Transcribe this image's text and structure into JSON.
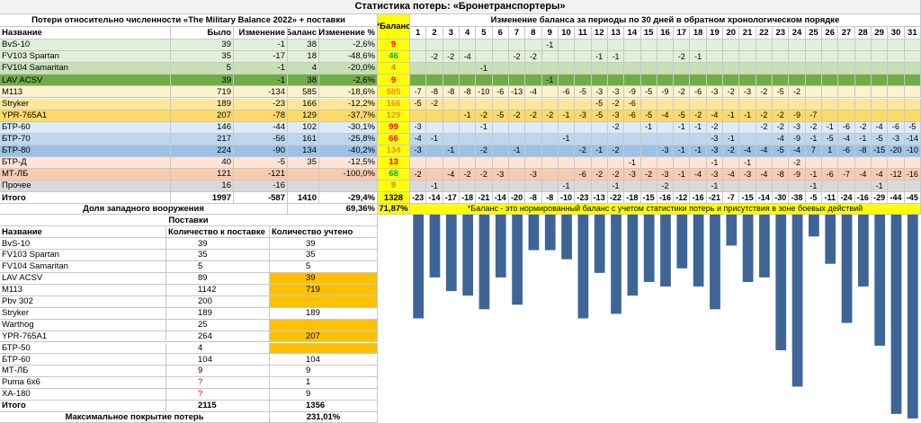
{
  "title": "Статистика потерь: «Бронетранспортеры»",
  "table": {
    "header_left": "Потери относительно численности «The Military Balance 2022» + поставки",
    "header_balance": "*Баланс",
    "header_periods": "Изменение баланса за периоды по 30 дней в обратном хронологическом порядке",
    "columns": [
      "Название",
      "Было",
      "Изменение",
      "Баланс",
      "Изменение %"
    ],
    "period_headers": [
      1,
      2,
      3,
      4,
      5,
      6,
      7,
      8,
      9,
      10,
      11,
      12,
      13,
      14,
      15,
      16,
      17,
      18,
      19,
      20,
      21,
      22,
      23,
      24,
      25,
      26,
      27,
      28,
      29,
      30,
      31
    ],
    "rows": [
      {
        "name": "BvS-10",
        "was": 39,
        "change": -1,
        "balance": 38,
        "change_pct": "-2,6%",
        "norm_balance": 9,
        "color": "#e2efda",
        "balance_color": "#ff0000",
        "periods": [
          null,
          null,
          null,
          null,
          null,
          null,
          null,
          null,
          -1,
          null,
          null,
          null,
          null,
          null,
          null,
          null,
          null,
          null,
          null,
          null,
          null,
          null,
          null,
          null,
          null,
          null,
          null,
          null,
          null,
          null,
          null
        ]
      },
      {
        "name": "FV103 Spartan",
        "was": 35,
        "change": -17,
        "balance": 18,
        "change_pct": "-48,6%",
        "norm_balance": 46,
        "color": "#e2efda",
        "balance_color": "#00b050",
        "periods": [
          null,
          -2,
          -2,
          -4,
          null,
          null,
          -2,
          -2,
          null,
          null,
          null,
          -1,
          -1,
          null,
          null,
          null,
          -2,
          -1,
          null,
          null,
          null,
          null,
          null,
          null,
          null,
          null,
          null,
          null,
          null,
          null,
          null
        ]
      },
      {
        "name": "FV104 Samaritan",
        "was": 5,
        "change": -1,
        "balance": 4,
        "change_pct": "-20,0%",
        "norm_balance": 4,
        "color": "#c6e0b4",
        "balance_color": "#bf9000",
        "periods": [
          null,
          null,
          null,
          null,
          -1,
          null,
          null,
          null,
          null,
          null,
          null,
          null,
          null,
          null,
          null,
          null,
          null,
          null,
          null,
          null,
          null,
          null,
          null,
          null,
          null,
          null,
          null,
          null,
          null,
          null,
          null
        ]
      },
      {
        "name": "LAV ACSV",
        "was": 39,
        "change": -1,
        "balance": 38,
        "change_pct": "-2,6%",
        "norm_balance": 9,
        "color": "#70ad47",
        "balance_color": "#ff0000",
        "periods": [
          null,
          null,
          null,
          null,
          null,
          null,
          null,
          null,
          -1,
          null,
          null,
          null,
          null,
          null,
          null,
          null,
          null,
          null,
          null,
          null,
          null,
          null,
          null,
          null,
          null,
          null,
          null,
          null,
          null,
          null,
          null
        ]
      },
      {
        "name": "M113",
        "was": 719,
        "change": -134,
        "balance": 585,
        "change_pct": "-18,6%",
        "norm_balance": 585,
        "color": "#fff2cc",
        "balance_color": "#e69138",
        "periods": [
          -7,
          -8,
          -8,
          -8,
          -10,
          -6,
          -13,
          -4,
          null,
          -6,
          -5,
          -3,
          -3,
          -9,
          -5,
          -9,
          -2,
          -6,
          -3,
          -2,
          -3,
          -2,
          -5,
          -2,
          null,
          null,
          null,
          null,
          null,
          null,
          null
        ]
      },
      {
        "name": "Stryker",
        "was": 189,
        "change": -23,
        "balance": 166,
        "change_pct": "-12,2%",
        "norm_balance": 166,
        "color": "#ffe699",
        "balance_color": "#e69138",
        "periods": [
          -5,
          -2,
          null,
          null,
          null,
          null,
          null,
          null,
          null,
          null,
          null,
          -5,
          -2,
          -6,
          null,
          null,
          null,
          null,
          null,
          null,
          null,
          null,
          null,
          null,
          null,
          null,
          null,
          null,
          null,
          null,
          null
        ]
      },
      {
        "name": "YPR-765A1",
        "was": 207,
        "change": -78,
        "balance": 129,
        "change_pct": "-37,7%",
        "norm_balance": 129,
        "color": "#ffd966",
        "balance_color": "#e69138",
        "periods": [
          null,
          null,
          null,
          -1,
          -2,
          -5,
          -2,
          -2,
          -2,
          -1,
          -3,
          -5,
          -3,
          -6,
          -5,
          -4,
          -5,
          -2,
          -4,
          -1,
          -1,
          -2,
          -2,
          -9,
          -7,
          null,
          null,
          null,
          null,
          null,
          null
        ]
      },
      {
        "name": "БТР-60",
        "was": 146,
        "change": -44,
        "balance": 102,
        "change_pct": "-30,1%",
        "norm_balance": 99,
        "color": "#ddebf7",
        "balance_color": "#ff0000",
        "periods": [
          -3,
          null,
          null,
          null,
          -1,
          null,
          null,
          null,
          null,
          null,
          null,
          null,
          -2,
          null,
          -1,
          null,
          -1,
          -1,
          -2,
          null,
          null,
          -2,
          -2,
          -3,
          -2,
          -1,
          -6,
          -2,
          -4,
          -6,
          -5
        ]
      },
      {
        "name": "БТР-70",
        "was": 217,
        "change": -56,
        "balance": 161,
        "change_pct": "-25,8%",
        "norm_balance": 66,
        "color": "#bdd7ee",
        "balance_color": "#ff0000",
        "periods": [
          -4,
          -1,
          null,
          null,
          null,
          null,
          null,
          null,
          null,
          -1,
          null,
          null,
          null,
          null,
          null,
          null,
          null,
          null,
          -3,
          -1,
          null,
          null,
          -4,
          -9,
          -1,
          -5,
          -4,
          -1,
          -5,
          -3,
          -14
        ]
      },
      {
        "name": "БТР-80",
        "was": 224,
        "change": -90,
        "balance": 134,
        "change_pct": "-40,2%",
        "norm_balance": 134,
        "color": "#9bc2e6",
        "balance_color": "#e69138",
        "periods": [
          -3,
          null,
          -1,
          null,
          -2,
          null,
          -1,
          null,
          null,
          null,
          -2,
          -1,
          -2,
          null,
          null,
          -3,
          -1,
          -1,
          -3,
          -2,
          -4,
          -4,
          -5,
          -4,
          7,
          1,
          -6,
          -8,
          -15,
          -20,
          -10
        ]
      },
      {
        "name": "БТР-Д",
        "was": 40,
        "change": -5,
        "balance": 35,
        "change_pct": "-12,5%",
        "norm_balance": 13,
        "color": "#fce4d6",
        "balance_color": "#ff0000",
        "periods": [
          null,
          null,
          null,
          null,
          null,
          null,
          null,
          null,
          null,
          null,
          null,
          null,
          null,
          -1,
          null,
          null,
          null,
          null,
          -1,
          null,
          -1,
          null,
          null,
          -2,
          null,
          null,
          null,
          null,
          null,
          null,
          null
        ]
      },
      {
        "name": "МТ-ЛБ",
        "was": 121,
        "change": -121,
        "balance": null,
        "change_pct": "-100,0%",
        "norm_balance": 68,
        "color": "#f8cbad",
        "balance_color": "#00b050",
        "periods": [
          -2,
          null,
          -4,
          -2,
          -2,
          -3,
          null,
          -3,
          null,
          null,
          -6,
          -2,
          -2,
          -3,
          -2,
          -3,
          -1,
          -4,
          -3,
          -4,
          -3,
          -4,
          -8,
          -9,
          -1,
          -6,
          -7,
          -4,
          -4,
          -12,
          -16
        ]
      },
      {
        "name": "Прочее",
        "was": 16,
        "change": -16,
        "balance": null,
        "change_pct": null,
        "norm_balance": 9,
        "color": "#d9d9d9",
        "balance_color": "#bf9000",
        "periods": [
          null,
          -1,
          null,
          null,
          null,
          null,
          null,
          null,
          null,
          -1,
          null,
          null,
          -1,
          null,
          null,
          -2,
          null,
          null,
          -1,
          null,
          null,
          null,
          null,
          null,
          -1,
          null,
          null,
          null,
          -1,
          null,
          null
        ]
      }
    ],
    "totals": {
      "name": "Итого",
      "was": 1997,
      "change": -587,
      "balance": 1410,
      "change_pct": "-29,4%",
      "norm_balance": 1328,
      "periods": [
        -23,
        -14,
        -17,
        -18,
        -21,
        -14,
        -20,
        -8,
        -8,
        -10,
        -23,
        -13,
        -22,
        -18,
        -15,
        -16,
        -12,
        -16,
        -21,
        -7,
        -15,
        -14,
        -30,
        -38,
        -5,
        -11,
        -24,
        -16,
        -29,
        -44,
        -45
      ]
    },
    "western_share_label": "Доля западного вооружения",
    "western_share": "69,36%",
    "western_share_balance": "71,87%",
    "note": "*Баланс - это нормированный баланс с учетом статистики потерь и присутствия в зоне боевых действий"
  },
  "chart": {
    "ylim": [
      -46,
      0
    ],
    "color": "#3f6597"
  },
  "supplies": {
    "title": "Поставки",
    "columns": [
      "Название",
      "Количество к поставке",
      "Количество учтено"
    ],
    "rows": [
      {
        "name": "BvS-10",
        "qty": 39,
        "counted": 39,
        "highlight": false
      },
      {
        "name": "FV103 Spartan",
        "qty": 35,
        "counted": 35,
        "highlight": false
      },
      {
        "name": "FV104 Samaritan",
        "qty": 5,
        "counted": 5,
        "highlight": false
      },
      {
        "name": "LAV ACSV",
        "qty": 89,
        "counted": 39,
        "highlight": true
      },
      {
        "name": "M113",
        "qty": 1142,
        "counted": 719,
        "highlight": true
      },
      {
        "name": "Pbv 302",
        "qty": 200,
        "counted": null,
        "highlight": true
      },
      {
        "name": "Stryker",
        "qty": 189,
        "counted": 189,
        "highlight": false
      },
      {
        "name": "Warthog",
        "qty": 25,
        "counted": null,
        "highlight": true
      },
      {
        "name": "YPR-765A1",
        "qty": 264,
        "counted": 207,
        "highlight": true
      },
      {
        "name": "БТР-50",
        "qty": 4,
        "counted": null,
        "highlight": true
      },
      {
        "name": "БТР-60",
        "qty": 104,
        "counted": 104,
        "highlight": false
      },
      {
        "name": "МТ-ЛБ",
        "qty": 9,
        "counted": 9,
        "highlight": false
      },
      {
        "name": "Puma 6x6",
        "qty": "?",
        "counted": 1,
        "highlight": false,
        "qty_color": "#e00000"
      },
      {
        "name": "ХА-180",
        "qty": "?",
        "counted": 9,
        "highlight": false,
        "qty_color": "#e00000"
      }
    ],
    "total_label": "Итого",
    "total_qty": 2115,
    "total_counted": 1356,
    "coverage_label": "Максимальное покрытие потерь",
    "coverage": "231,01%"
  }
}
